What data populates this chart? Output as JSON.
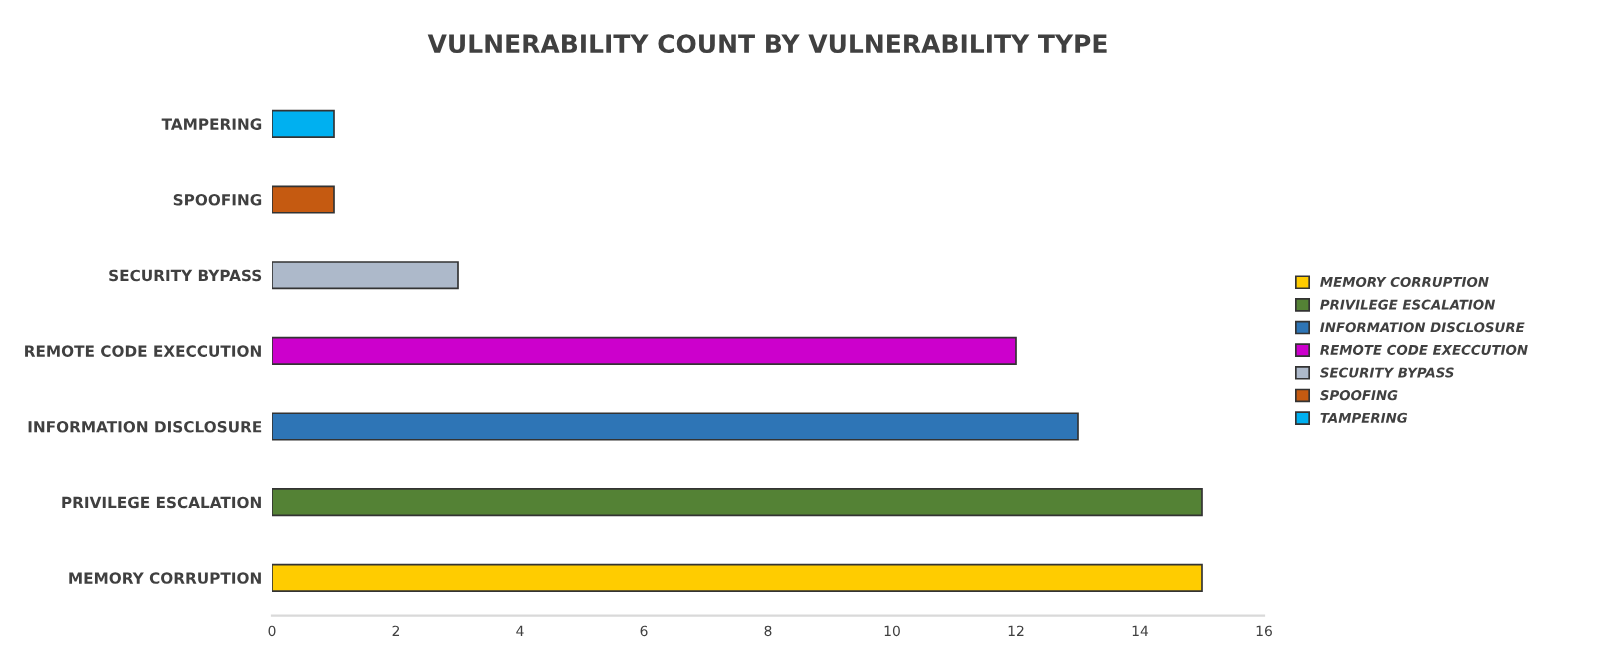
{
  "chart_data": {
    "type": "bar",
    "orientation": "horizontal",
    "title": "VULNERABILITY COUNT BY VULNERABILITY TYPE",
    "categories": [
      "TAMPERING",
      "SPOOFING",
      "SECURITY BYPASS",
      "REMOTE CODE EXECCUTION",
      "INFORMATION DISCLOSURE",
      "PRIVILEGE ESCALATION",
      "MEMORY CORRUPTION"
    ],
    "series": [
      {
        "name": "TAMPERING",
        "color": "#00b0f0",
        "values": [
          1,
          null,
          null,
          null,
          null,
          null,
          null
        ]
      },
      {
        "name": "SPOOFING",
        "color": "#c55a11",
        "values": [
          null,
          1,
          null,
          null,
          null,
          null,
          null
        ]
      },
      {
        "name": "SECURITY BYPASS",
        "color": "#adb9ca",
        "values": [
          null,
          null,
          3,
          null,
          null,
          null,
          null
        ]
      },
      {
        "name": "REMOTE CODE EXECCUTION",
        "color": "#cc00cc",
        "values": [
          null,
          null,
          null,
          12,
          null,
          null,
          null
        ]
      },
      {
        "name": "INFORMATION DISCLOSURE",
        "color": "#2e75b6",
        "values": [
          null,
          null,
          null,
          null,
          13,
          null,
          null
        ]
      },
      {
        "name": "PRIVILEGE ESCALATION",
        "color": "#548235",
        "values": [
          null,
          null,
          null,
          null,
          null,
          15,
          null
        ]
      },
      {
        "name": "MEMORY CORRUPTION",
        "color": "#ffcc00",
        "values": [
          null,
          null,
          null,
          null,
          null,
          null,
          15
        ]
      }
    ],
    "xlim": [
      0,
      16
    ],
    "xticks": [
      0,
      2,
      4,
      6,
      8,
      10,
      12,
      14,
      16
    ],
    "grid": false,
    "legend": "right"
  }
}
